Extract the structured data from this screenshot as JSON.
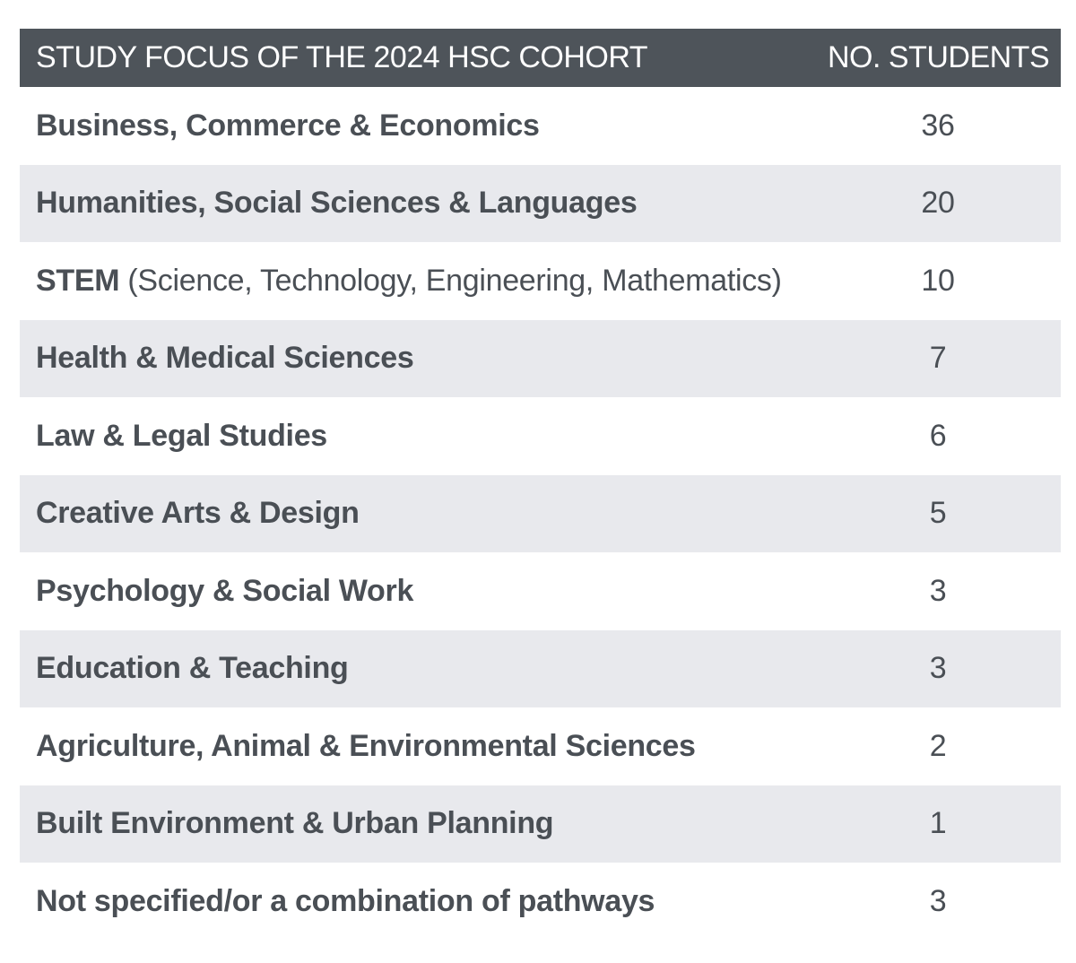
{
  "table": {
    "header": {
      "focus": "STUDY FOCUS OF THE 2024 HSC COHORT",
      "count": "NO. STUDENTS"
    },
    "rows": [
      {
        "focus_bold": "Business, Commerce & Economics",
        "focus_light": "",
        "count": "36"
      },
      {
        "focus_bold": "Humanities, Social Sciences & Languages",
        "focus_light": "",
        "count": "20"
      },
      {
        "focus_bold": "STEM",
        "focus_light": " (Science, Technology, Engineering, Mathematics)",
        "count": "10"
      },
      {
        "focus_bold": "Health & Medical Sciences",
        "focus_light": "",
        "count": "7"
      },
      {
        "focus_bold": "Law & Legal Studies",
        "focus_light": "",
        "count": "6"
      },
      {
        "focus_bold": "Creative Arts & Design",
        "focus_light": "",
        "count": "5"
      },
      {
        "focus_bold": "Psychology & Social Work",
        "focus_light": "",
        "count": "3"
      },
      {
        "focus_bold": "Education & Teaching",
        "focus_light": "",
        "count": "3"
      },
      {
        "focus_bold": "Agriculture, Animal & Environmental Sciences",
        "focus_light": "",
        "count": "2"
      },
      {
        "focus_bold": "Built Environment & Urban Planning",
        "focus_light": "",
        "count": "1"
      },
      {
        "focus_bold": "Not specified/or a combination of pathways",
        "focus_light": "",
        "count": "3"
      }
    ]
  }
}
